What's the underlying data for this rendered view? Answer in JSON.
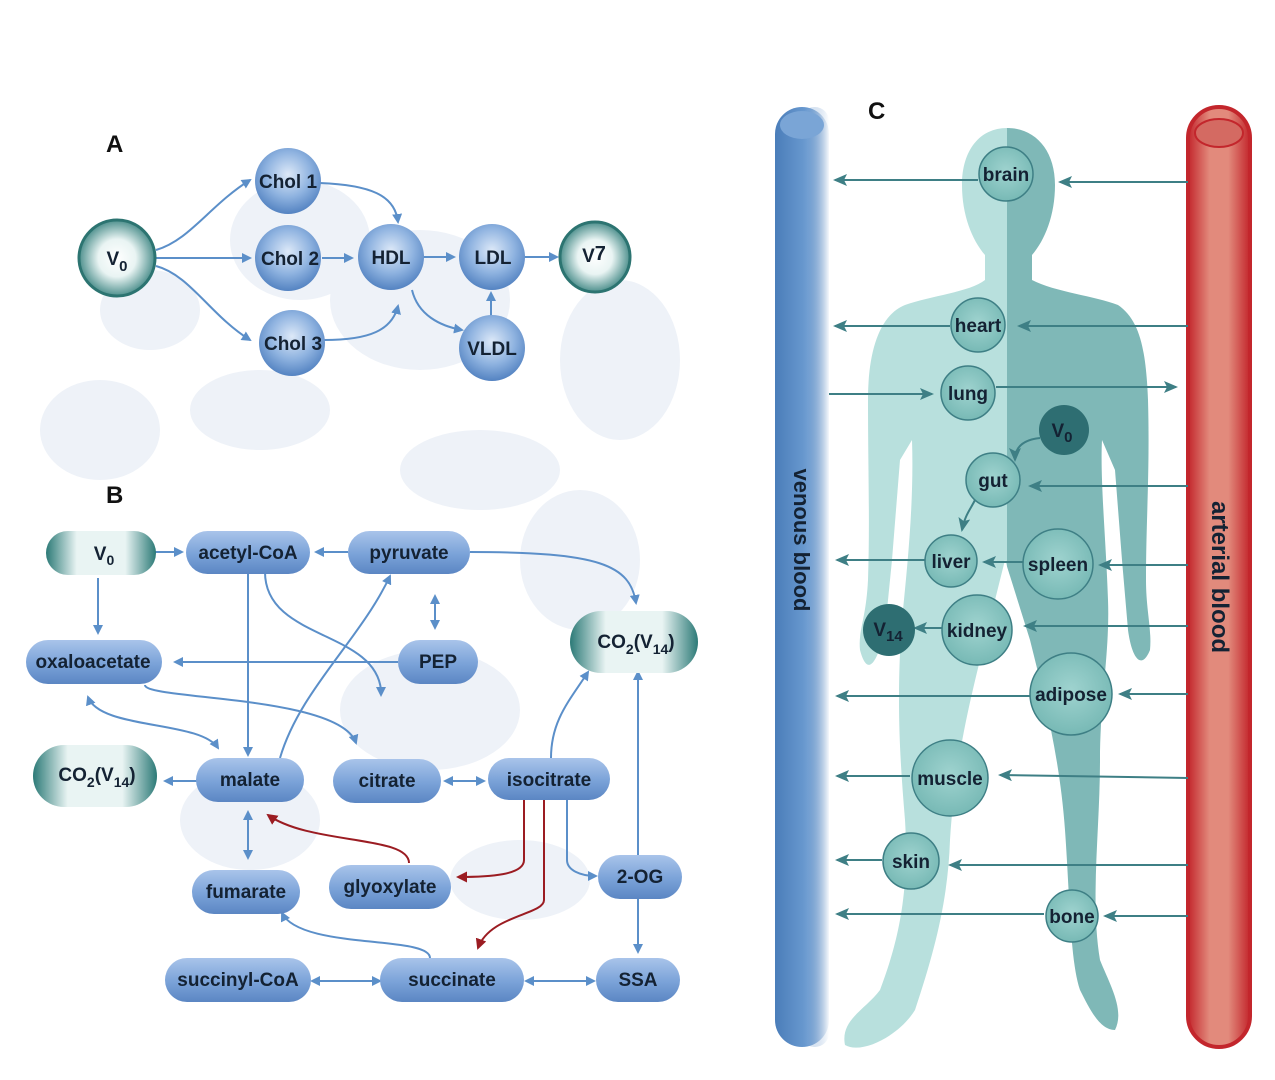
{
  "panels": {
    "A": {
      "label": "A",
      "nodes": {
        "v0": {
          "base": "V",
          "sub": "0"
        },
        "chol1": "Chol 1",
        "chol2": "Chol 2",
        "chol3": "Chol 3",
        "hdl": "HDL",
        "ldl": "LDL",
        "vldl": "VLDL",
        "v7": {
          "base": "V",
          "sub": "7"
        }
      }
    },
    "B": {
      "label": "B",
      "nodes": {
        "v0": {
          "base": "V",
          "sub": "0"
        },
        "acetyl_coa": "acetyl-CoA",
        "pyruvate": "pyruvate",
        "co2_right": {
          "base": "CO",
          "sub1": "2",
          "mid": "(V",
          "sub2": "14",
          "end": ")"
        },
        "oxaloacetate": "oxaloacetate",
        "pep": "PEP",
        "co2_left": {
          "base": "CO",
          "sub1": "2",
          "mid": "(V",
          "sub2": "14",
          "end": ")"
        },
        "malate": "malate",
        "citrate": "citrate",
        "isocitrate": "isocitrate",
        "glyoxylate": "glyoxylate",
        "fumarate": "fumarate",
        "two_og": "2-OG",
        "succinyl_coa": "succinyl-CoA",
        "succinate": "succinate",
        "ssa": "SSA"
      }
    },
    "C": {
      "label": "C",
      "venous_label": "venous blood",
      "arterial_label": "arterial blood",
      "organs": {
        "brain": "brain",
        "heart": "heart",
        "lung": "lung",
        "gut": "gut",
        "liver": "liver",
        "spleen": "spleen",
        "kidney": "kidney",
        "adipose": "adipose",
        "muscle": "muscle",
        "skin": "skin",
        "bone": "bone"
      },
      "v0": {
        "base": "V",
        "sub": "0"
      },
      "v14": {
        "base": "V",
        "sub": "14"
      }
    }
  },
  "colors": {
    "node_blue": "#6f9ad3",
    "node_green": "#3b8a87",
    "arrow_blue": "#5b8fc9",
    "arrow_red": "#9b1c22",
    "arrow_teal": "#3e7f85",
    "body_light": "#b6dfdc",
    "body_dark": "#7fb9b8",
    "venous": "#5b8dc6",
    "arterial": "#c8262b"
  }
}
